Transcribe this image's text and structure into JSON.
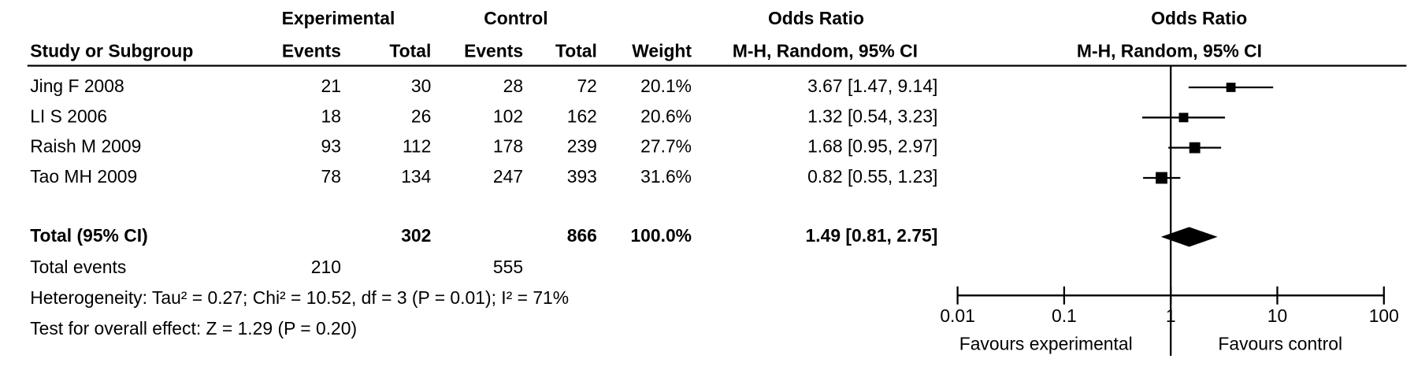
{
  "chart_data": {
    "type": "forest",
    "headers": {
      "experimental": "Experimental",
      "control": "Control",
      "or_group": "Odds Ratio",
      "plot_group": "Odds Ratio",
      "study": "Study or Subgroup",
      "events": "Events",
      "total": "Total",
      "events2": "Events",
      "total2": "Total",
      "weight": "Weight",
      "method": "M-H, Random, 95% CI",
      "plot_method": "M-H, Random, 95% CI"
    },
    "studies": [
      {
        "name": "Jing F 2008",
        "exp_events": 21,
        "exp_total": 30,
        "ctrl_events": 28,
        "ctrl_total": 72,
        "weight": 20.1,
        "weight_label": "20.1%",
        "or": 3.67,
        "ci_low": 1.47,
        "ci_high": 9.14,
        "or_label": "3.67 [1.47, 9.14]"
      },
      {
        "name": "LI S 2006",
        "exp_events": 18,
        "exp_total": 26,
        "ctrl_events": 102,
        "ctrl_total": 162,
        "weight": 20.6,
        "weight_label": "20.6%",
        "or": 1.32,
        "ci_low": 0.54,
        "ci_high": 3.23,
        "or_label": "1.32 [0.54, 3.23]"
      },
      {
        "name": "Raish M 2009",
        "exp_events": 93,
        "exp_total": 112,
        "ctrl_events": 178,
        "ctrl_total": 239,
        "weight": 27.7,
        "weight_label": "27.7%",
        "or": 1.68,
        "ci_low": 0.95,
        "ci_high": 2.97,
        "or_label": "1.68 [0.95, 2.97]"
      },
      {
        "name": "Tao MH 2009",
        "exp_events": 78,
        "exp_total": 134,
        "ctrl_events": 247,
        "ctrl_total": 393,
        "weight": 31.6,
        "weight_label": "31.6%",
        "or": 0.82,
        "ci_low": 0.55,
        "ci_high": 1.23,
        "or_label": "0.82 [0.55, 1.23]"
      }
    ],
    "total": {
      "name": "Total (95% CI)",
      "exp_total": 302,
      "ctrl_total": 866,
      "weight": 100,
      "weight_label": "100.0%",
      "or": 1.49,
      "ci_low": 0.81,
      "ci_high": 2.75,
      "or_label": "1.49 [0.81, 2.75]"
    },
    "total_events": {
      "name": "Total events",
      "exp": 210,
      "ctrl": 555
    },
    "heterogeneity": "Heterogeneity: Tau² = 0.27; Chi² = 10.52, df = 3 (P = 0.01); I² = 71%",
    "overall_effect": "Test for overall effect: Z = 1.29 (P = 0.20)",
    "xlim": [
      0.01,
      100
    ],
    "xticks": [
      0.01,
      0.1,
      1,
      10,
      100
    ],
    "log_x": true,
    "xlabel_left": "Favours experimental",
    "xlabel_right": "Favours control",
    "color": "#000000"
  }
}
